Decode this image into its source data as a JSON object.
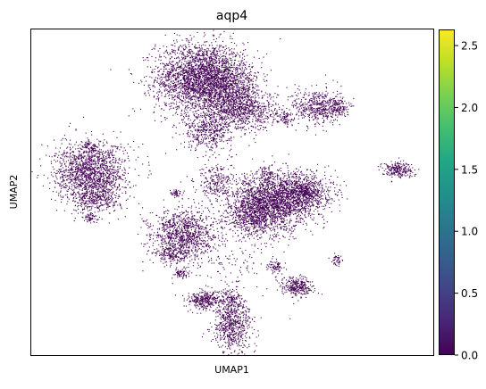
{
  "chart_data": {
    "type": "scatter",
    "title": "aqp4",
    "xlabel": "UMAP1",
    "ylabel": "UMAP2",
    "x_ticks_shown": false,
    "y_ticks_shown": false,
    "point_color": "#440154",
    "colorbar": {
      "colormap": "viridis",
      "range": [
        0.0,
        2.63
      ],
      "ticks": [
        "0.0",
        "0.5",
        "1.0",
        "1.5",
        "2.0",
        "2.5"
      ],
      "tick_values": [
        0.0,
        0.5,
        1.0,
        1.5,
        2.0,
        2.5
      ]
    },
    "clusters": [
      {
        "cx": 0.42,
        "cy": 0.85,
        "sx": 0.055,
        "sy": 0.055,
        "w": 0.17
      },
      {
        "cx": 0.49,
        "cy": 0.82,
        "sx": 0.04,
        "sy": 0.04,
        "w": 0.05
      },
      {
        "cx": 0.53,
        "cy": 0.75,
        "sx": 0.04,
        "sy": 0.03,
        "w": 0.05
      },
      {
        "cx": 0.44,
        "cy": 0.69,
        "sx": 0.03,
        "sy": 0.03,
        "w": 0.03
      },
      {
        "cx": 0.71,
        "cy": 0.76,
        "sx": 0.03,
        "sy": 0.03,
        "w": 0.03
      },
      {
        "cx": 0.76,
        "cy": 0.76,
        "sx": 0.015,
        "sy": 0.015,
        "w": 0.01
      },
      {
        "cx": 0.63,
        "cy": 0.73,
        "sx": 0.01,
        "sy": 0.01,
        "w": 0.005
      },
      {
        "cx": 0.91,
        "cy": 0.57,
        "sx": 0.02,
        "sy": 0.012,
        "w": 0.015
      },
      {
        "cx": 0.15,
        "cy": 0.56,
        "sx": 0.045,
        "sy": 0.045,
        "w": 0.1
      },
      {
        "cx": 0.16,
        "cy": 0.48,
        "sx": 0.03,
        "sy": 0.02,
        "w": 0.02
      },
      {
        "cx": 0.15,
        "cy": 0.64,
        "sx": 0.015,
        "sy": 0.012,
        "w": 0.005
      },
      {
        "cx": 0.15,
        "cy": 0.42,
        "sx": 0.01,
        "sy": 0.008,
        "w": 0.004
      },
      {
        "cx": 0.6,
        "cy": 0.47,
        "sx": 0.05,
        "sy": 0.045,
        "w": 0.13
      },
      {
        "cx": 0.68,
        "cy": 0.5,
        "sx": 0.035,
        "sy": 0.03,
        "w": 0.05
      },
      {
        "cx": 0.55,
        "cy": 0.43,
        "sx": 0.03,
        "sy": 0.03,
        "w": 0.03
      },
      {
        "cx": 0.46,
        "cy": 0.53,
        "sx": 0.025,
        "sy": 0.025,
        "w": 0.015
      },
      {
        "cx": 0.38,
        "cy": 0.37,
        "sx": 0.04,
        "sy": 0.04,
        "w": 0.07
      },
      {
        "cx": 0.35,
        "cy": 0.31,
        "sx": 0.02,
        "sy": 0.015,
        "w": 0.01
      },
      {
        "cx": 0.37,
        "cy": 0.25,
        "sx": 0.01,
        "sy": 0.01,
        "w": 0.005
      },
      {
        "cx": 0.66,
        "cy": 0.21,
        "sx": 0.02,
        "sy": 0.015,
        "w": 0.02
      },
      {
        "cx": 0.61,
        "cy": 0.27,
        "sx": 0.01,
        "sy": 0.01,
        "w": 0.005
      },
      {
        "cx": 0.76,
        "cy": 0.29,
        "sx": 0.008,
        "sy": 0.008,
        "w": 0.003
      },
      {
        "cx": 0.43,
        "cy": 0.17,
        "sx": 0.02,
        "sy": 0.015,
        "w": 0.02
      },
      {
        "cx": 0.5,
        "cy": 0.09,
        "sx": 0.025,
        "sy": 0.04,
        "w": 0.04
      },
      {
        "cx": 0.5,
        "cy": 0.17,
        "sx": 0.015,
        "sy": 0.02,
        "w": 0.01
      },
      {
        "cx": 0.36,
        "cy": 0.5,
        "sx": 0.008,
        "sy": 0.006,
        "w": 0.003
      },
      {
        "cx": 0.52,
        "cy": 0.33,
        "sx": 0.05,
        "sy": 0.08,
        "w": 0.012
      },
      {
        "cx": 0.58,
        "cy": 0.56,
        "sx": 0.01,
        "sy": 0.01,
        "w": 0.003
      }
    ]
  }
}
